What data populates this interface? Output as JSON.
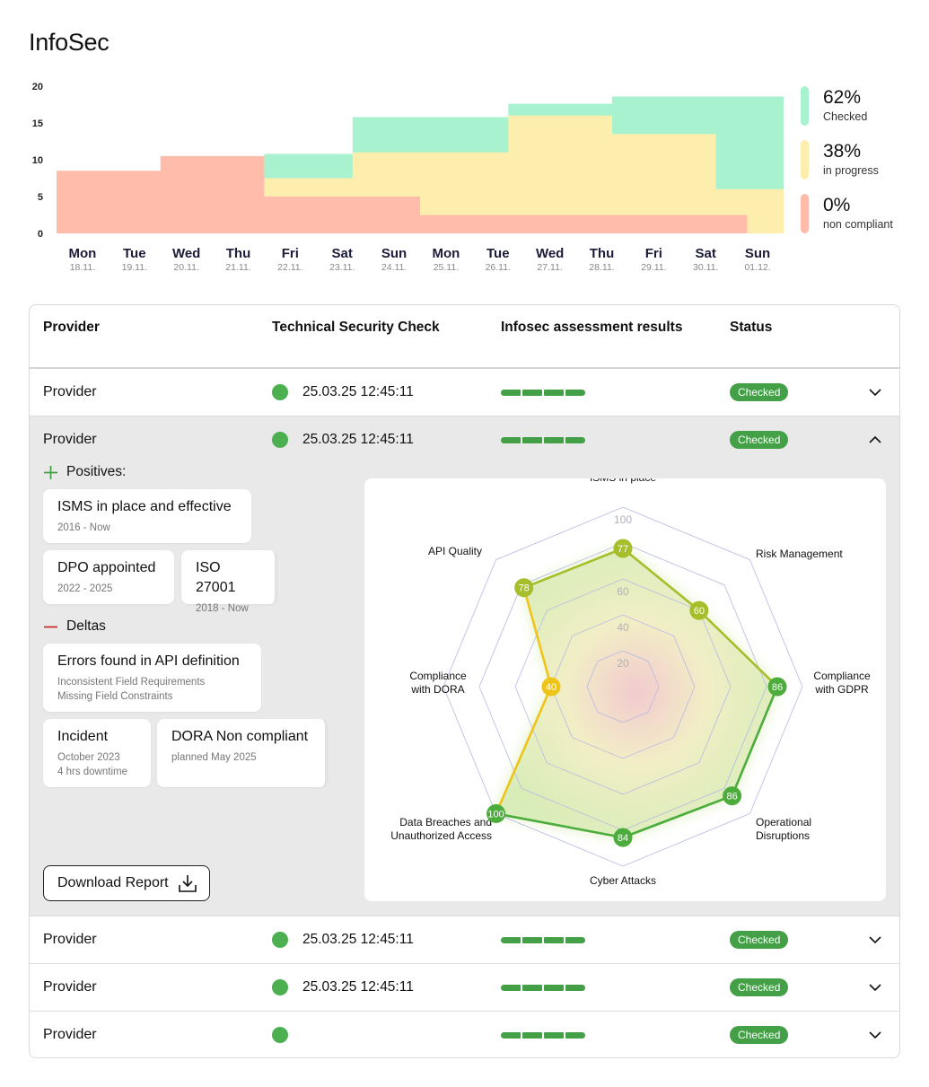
{
  "page": {
    "title": "InfoSec"
  },
  "chart_data": [
    {
      "type": "area",
      "ylim": [
        0,
        20
      ],
      "yticks": [
        0,
        5,
        10,
        15,
        20
      ],
      "categories": [
        {
          "day": "Mon",
          "date": "18.11."
        },
        {
          "day": "Tue",
          "date": "19.11."
        },
        {
          "day": "Wed",
          "date": "20.11."
        },
        {
          "day": "Thu",
          "date": "21.11."
        },
        {
          "day": "Fri",
          "date": "22.11."
        },
        {
          "day": "Sat",
          "date": "23.11."
        },
        {
          "day": "Sun",
          "date": "24.11."
        },
        {
          "day": "Mon",
          "date": "25.11."
        },
        {
          "day": "Tue",
          "date": "26.11."
        },
        {
          "day": "Wed",
          "date": "27.11."
        },
        {
          "day": "Thu",
          "date": "28.11."
        },
        {
          "day": "Fri",
          "date": "29.11."
        },
        {
          "day": "Sat",
          "date": "30.11."
        },
        {
          "day": "Sun",
          "date": "01.12."
        }
      ],
      "steps": {
        "non_compliant": {
          "color": "#ffbcaa",
          "x": [
            0,
            2,
            4,
            7,
            13.3,
            14
          ],
          "y": [
            8.5,
            10.5,
            5,
            2.5,
            0,
            0
          ]
        },
        "in_progress": {
          "color": "#fdeead",
          "x": [
            0,
            4,
            5.7,
            8.7,
            10.7,
            12.7,
            14
          ],
          "y": [
            0,
            7.5,
            11,
            16,
            13.5,
            6,
            6
          ]
        },
        "checked": {
          "color": "#a8f2cf",
          "x": [
            0,
            4,
            5.7,
            8.7,
            10.7,
            12.7,
            14
          ],
          "y": [
            0,
            10.8,
            15.8,
            17.6,
            18.6,
            18.6,
            18.6
          ]
        }
      }
    },
    {
      "type": "radar",
      "axes": [
        "ISMS in place",
        "Risk Management",
        "Compliance with GDPR",
        "Operational Disruptions",
        "Cyber Attacks",
        "Data Breaches and Unauthorized Access",
        "Compliance with DORA",
        "API Quality"
      ],
      "axis_label_lines": [
        [
          "ISMS in place"
        ],
        [
          "Risk Management"
        ],
        [
          "Compliance",
          "with GDPR"
        ],
        [
          "Operational",
          "Disruptions"
        ],
        [
          "Cyber Attacks"
        ],
        [
          "Data Breaches and",
          "Unauthorized Access"
        ],
        [
          "Compliance",
          "with DORA"
        ],
        [
          "API Quality"
        ]
      ],
      "values": [
        77,
        60,
        86,
        86,
        84,
        100,
        40,
        78
      ],
      "value_labels": [
        "77",
        "60",
        "86",
        "86",
        "84",
        "100",
        "40",
        "78"
      ],
      "rings": [
        20,
        40,
        60,
        80,
        100
      ],
      "ring_labels": [
        "20",
        "40",
        "60",
        "100"
      ],
      "range": [
        0,
        100
      ],
      "colors": {
        "high": "#4cac3c",
        "mid": "#a6be29",
        "low": "#efc418",
        "grid": "#b6b9e4"
      }
    }
  ],
  "legend": [
    {
      "value": "62%",
      "label": "Checked",
      "color": "#a8f2cf"
    },
    {
      "value": "38%",
      "label": "in progress",
      "color": "#fdeead"
    },
    {
      "value": "0%",
      "label": "non compliant",
      "color": "#ffbcaa"
    }
  ],
  "table": {
    "headers": {
      "provider": "Provider",
      "check": "Technical Security Check",
      "results": "Infosec assessment results",
      "status": "Status"
    },
    "rows": [
      {
        "provider": "Provider",
        "datetime": "25.03.25 12:45:11",
        "status": "Checked"
      },
      {
        "provider": "Provider",
        "datetime": "25.03.25 12:45:11",
        "status": "Checked"
      },
      {
        "provider": "Provider",
        "datetime": "25.03.25 12:45:11",
        "status": "Checked"
      },
      {
        "provider": "Provider",
        "datetime": "25.03.25 12:45:11",
        "status": "Checked"
      },
      {
        "provider": "Provider",
        "datetime": "",
        "status": "Checked"
      }
    ]
  },
  "details": {
    "positives_label": "Positives:",
    "positives": [
      {
        "title": "ISMS in place and effective",
        "sub": [
          "2016 - Now"
        ]
      },
      {
        "title": "DPO appointed",
        "sub": [
          "2022 - 2025"
        ]
      },
      {
        "title": "ISO 27001",
        "sub": [
          "2018 - Now"
        ]
      }
    ],
    "deltas_label": "Deltas",
    "deltas": [
      {
        "title": "Errors found in API definition",
        "sub": [
          "Inconsistent Field Requirements",
          "Missing Field Constraints"
        ]
      },
      {
        "title": "Incident",
        "sub": [
          "October 2023",
          "4 hrs downtime"
        ]
      },
      {
        "title": "DORA Non compliant",
        "sub": [
          "planned May 2025"
        ]
      }
    ],
    "download_label": "Download Report"
  },
  "icons": {
    "plus": "plus-icon",
    "minus": "minus-icon",
    "download": "download-icon",
    "chevron_down": "chevron-down-icon",
    "chevron_up": "chevron-up-icon"
  }
}
